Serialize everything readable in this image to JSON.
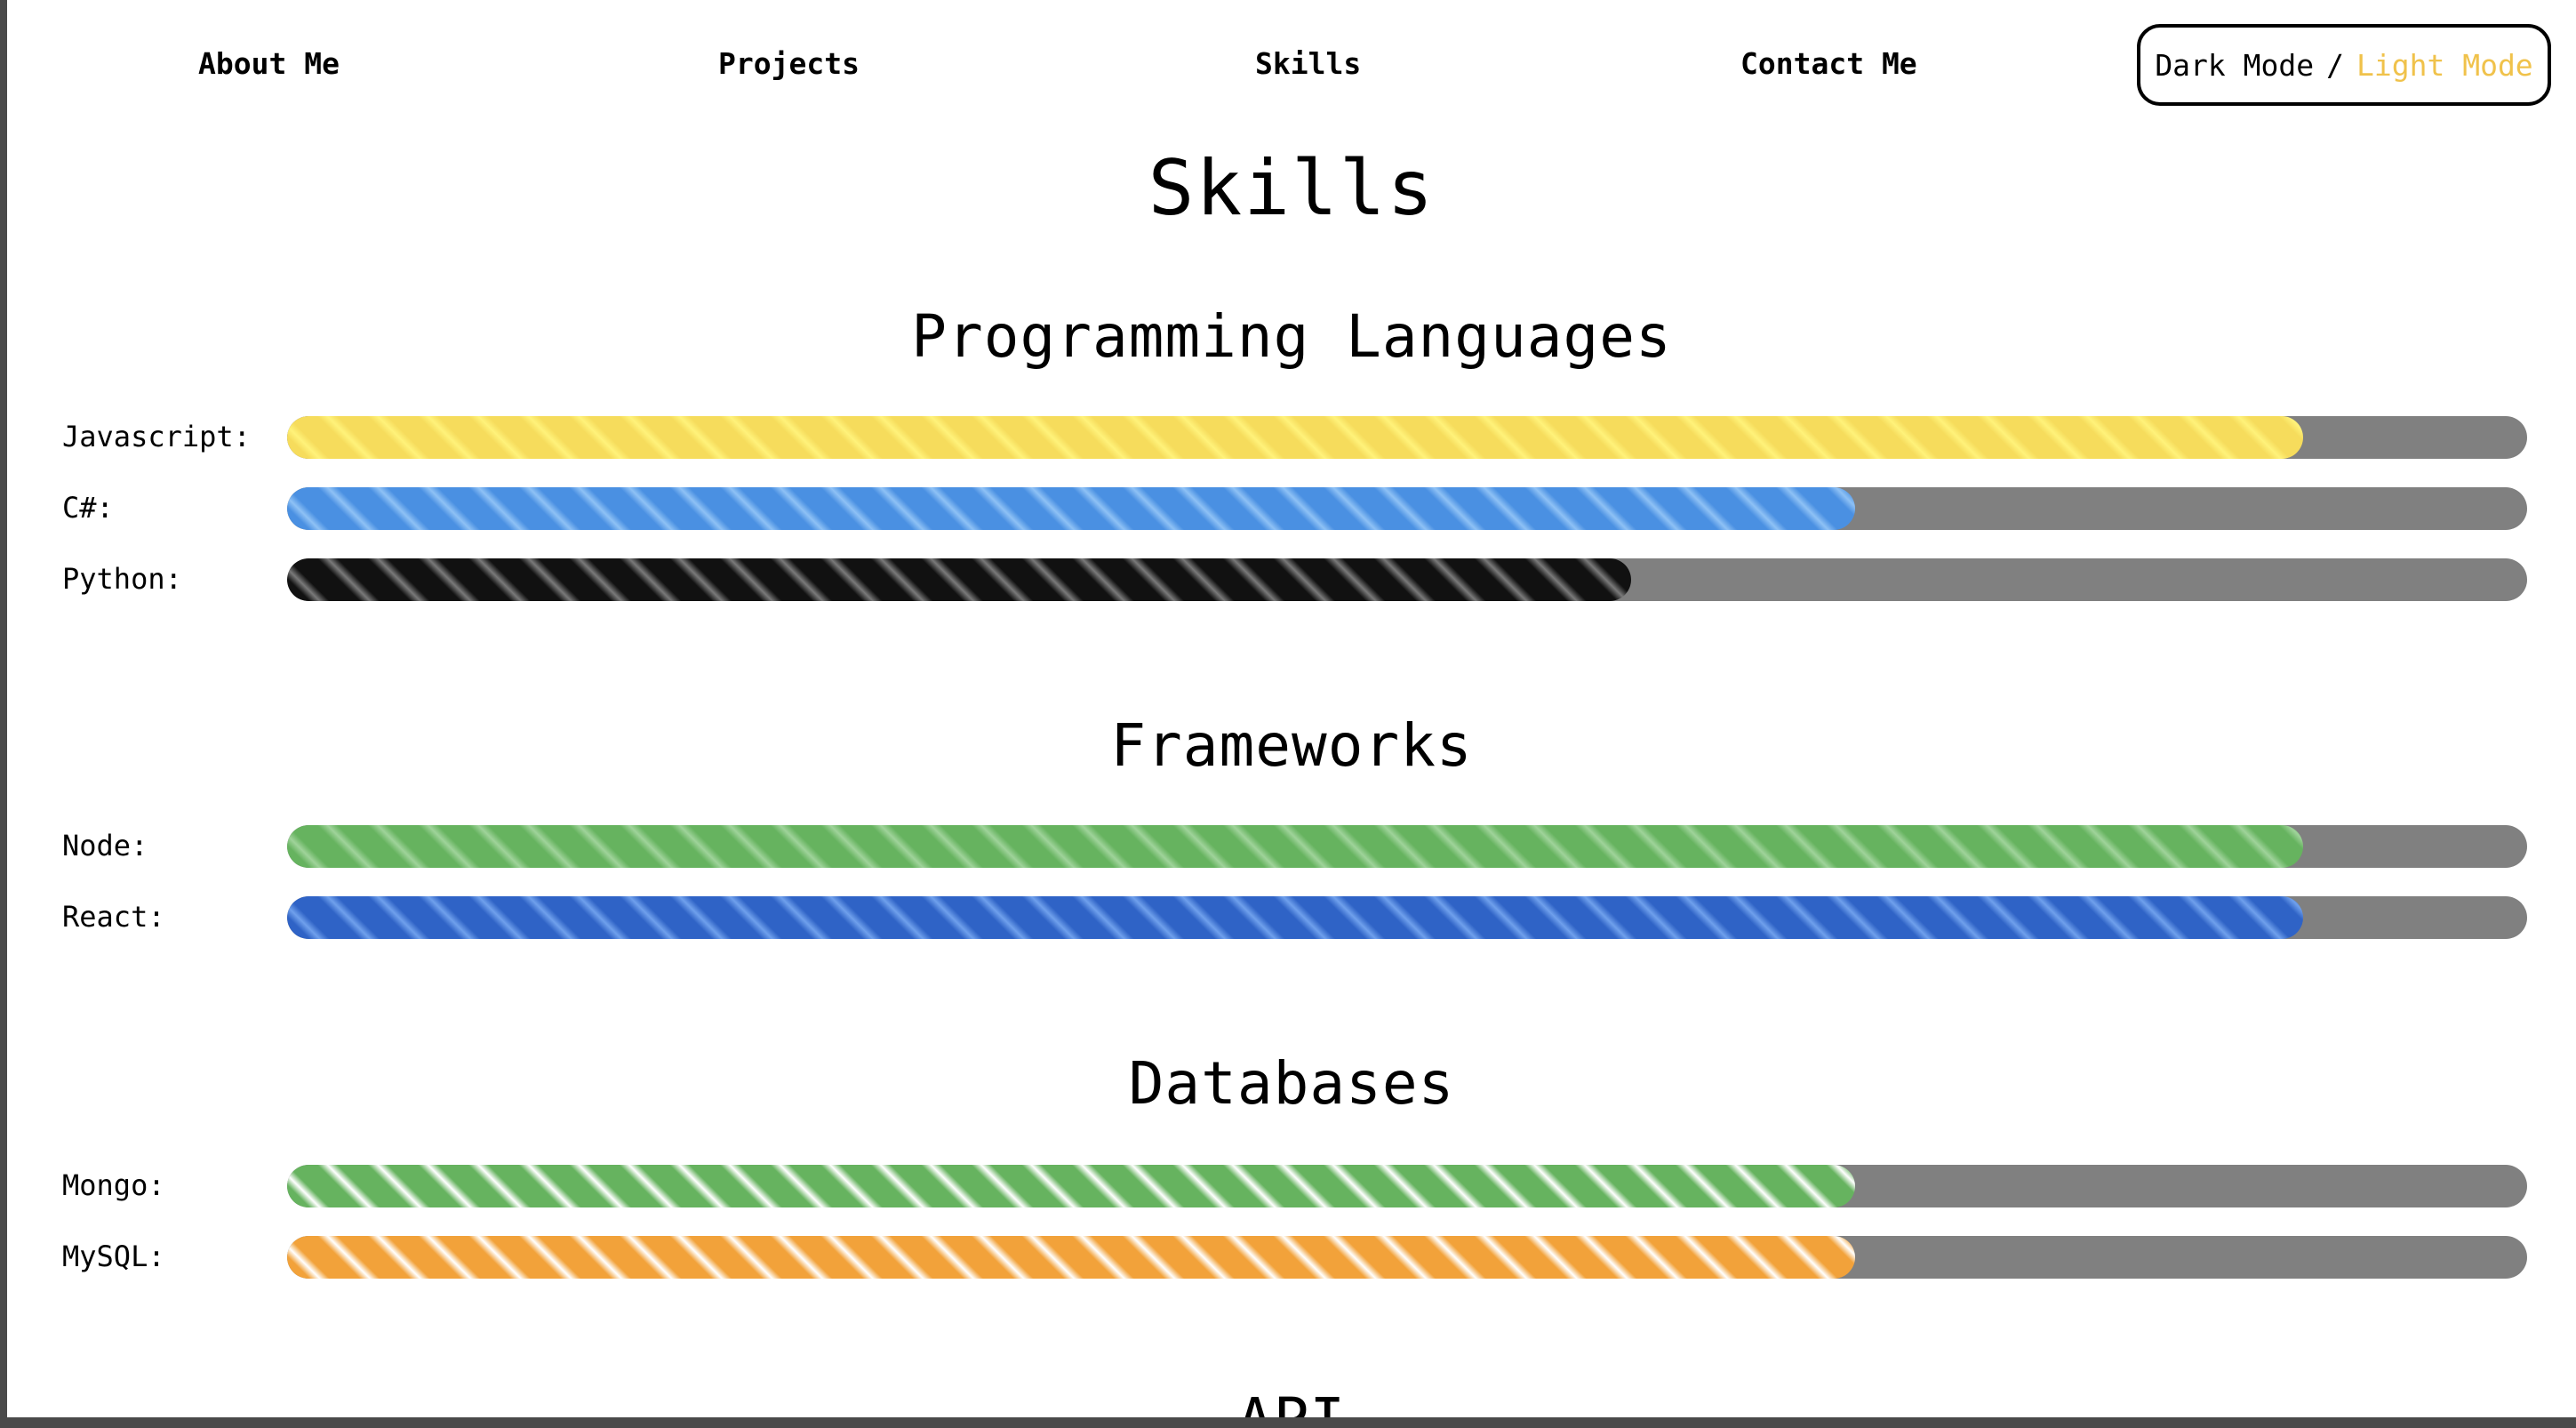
{
  "nav": {
    "items": [
      "About Me",
      "Projects",
      "Skills",
      "Contact Me"
    ],
    "mode_toggle": {
      "dark": "Dark Mode",
      "separator": "/",
      "light": "Light Mode"
    }
  },
  "page_title": "Skills",
  "sections": [
    {
      "title": "Programming Languages",
      "skills": [
        {
          "label": "Javascript:",
          "level": 0.9,
          "color_a": "#f6dc5c",
          "color_b": "#fff27a"
        },
        {
          "label": "C#:",
          "level": 0.7,
          "color_a": "#4a90e2",
          "color_b": "#8ec1f5"
        },
        {
          "label": "Python:",
          "level": 0.6,
          "color_a": "#111111",
          "color_b": "#7a7a7a"
        }
      ]
    },
    {
      "title": "Frameworks",
      "skills": [
        {
          "label": "Node:",
          "level": 0.9,
          "color_a": "#66b35f",
          "color_b": "#9fd39a"
        },
        {
          "label": "React:",
          "level": 0.9,
          "color_a": "#2f63c6",
          "color_b": "#6fa0ec"
        }
      ]
    },
    {
      "title": "Databases",
      "skills": [
        {
          "label": "Mongo:",
          "level": 0.7,
          "color_a": "#66b35f",
          "color_b": "#ffffff"
        },
        {
          "label": "MySQL:",
          "level": 0.7,
          "color_a": "#f2a23a",
          "color_b": "#ffffff"
        }
      ]
    },
    {
      "title": "API",
      "skills": []
    }
  ]
}
